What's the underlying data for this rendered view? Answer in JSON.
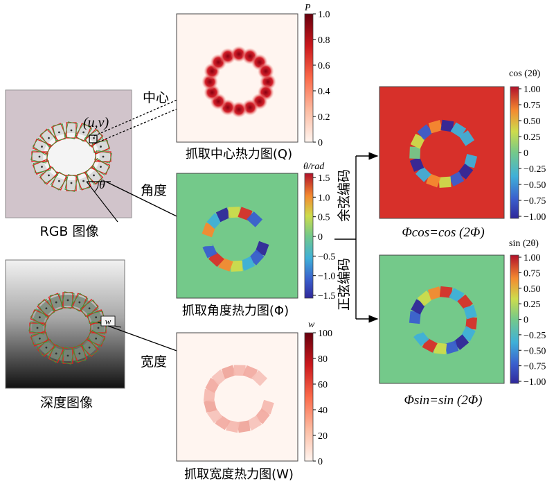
{
  "left": {
    "rgb_caption": "RGB 图像",
    "depth_caption": "深度图像",
    "uv_label": "(u,v)",
    "theta_label": "θ",
    "w_label": "w"
  },
  "arrow_labels": {
    "center": "中心",
    "angle": "角度",
    "width": "宽度",
    "cos_encode": "余弦编码",
    "sin_encode": "正弦编码"
  },
  "heatmaps": {
    "q": {
      "caption": "抓取中心热力图(Q)",
      "colorbar_title": "P",
      "ticks": [
        "1.0",
        "0.8",
        "0.6",
        "0.4",
        "0.2",
        "0"
      ]
    },
    "phi": {
      "caption": "抓取角度热力图(Φ)",
      "colorbar_title": "θ/rad",
      "ticks": [
        "1.5",
        "1.0",
        "0.5",
        "0",
        "−0.5",
        "−1.0",
        "−1.5"
      ]
    },
    "w": {
      "caption": "抓取宽度热力图(W)",
      "colorbar_title": "w",
      "ticks": [
        "100",
        "80",
        "60",
        "40",
        "20",
        "0"
      ]
    },
    "cos": {
      "caption": "Φcos=cos (2Φ)",
      "colorbar_title": "cos (2θ)",
      "ticks": [
        "1.00",
        "0.75",
        "0.50",
        "0.25",
        "0",
        "−0.25",
        "−0.50",
        "−0.75",
        "−1.00"
      ]
    },
    "sin": {
      "caption": "Φsin=sin (2Φ)",
      "colorbar_title": "sin (2θ)",
      "ticks": [
        "1.00",
        "0.75",
        "0.50",
        "0.25",
        "0",
        "−0.25",
        "−0.50",
        "−0.75",
        "−1.00"
      ]
    }
  },
  "colors": {
    "angle_background": "#74c98a",
    "cos_background": "#d7302a",
    "sin_background": "#74c98a",
    "width_heat": "#f0aaa2",
    "q_heat": "#c8101d"
  }
}
